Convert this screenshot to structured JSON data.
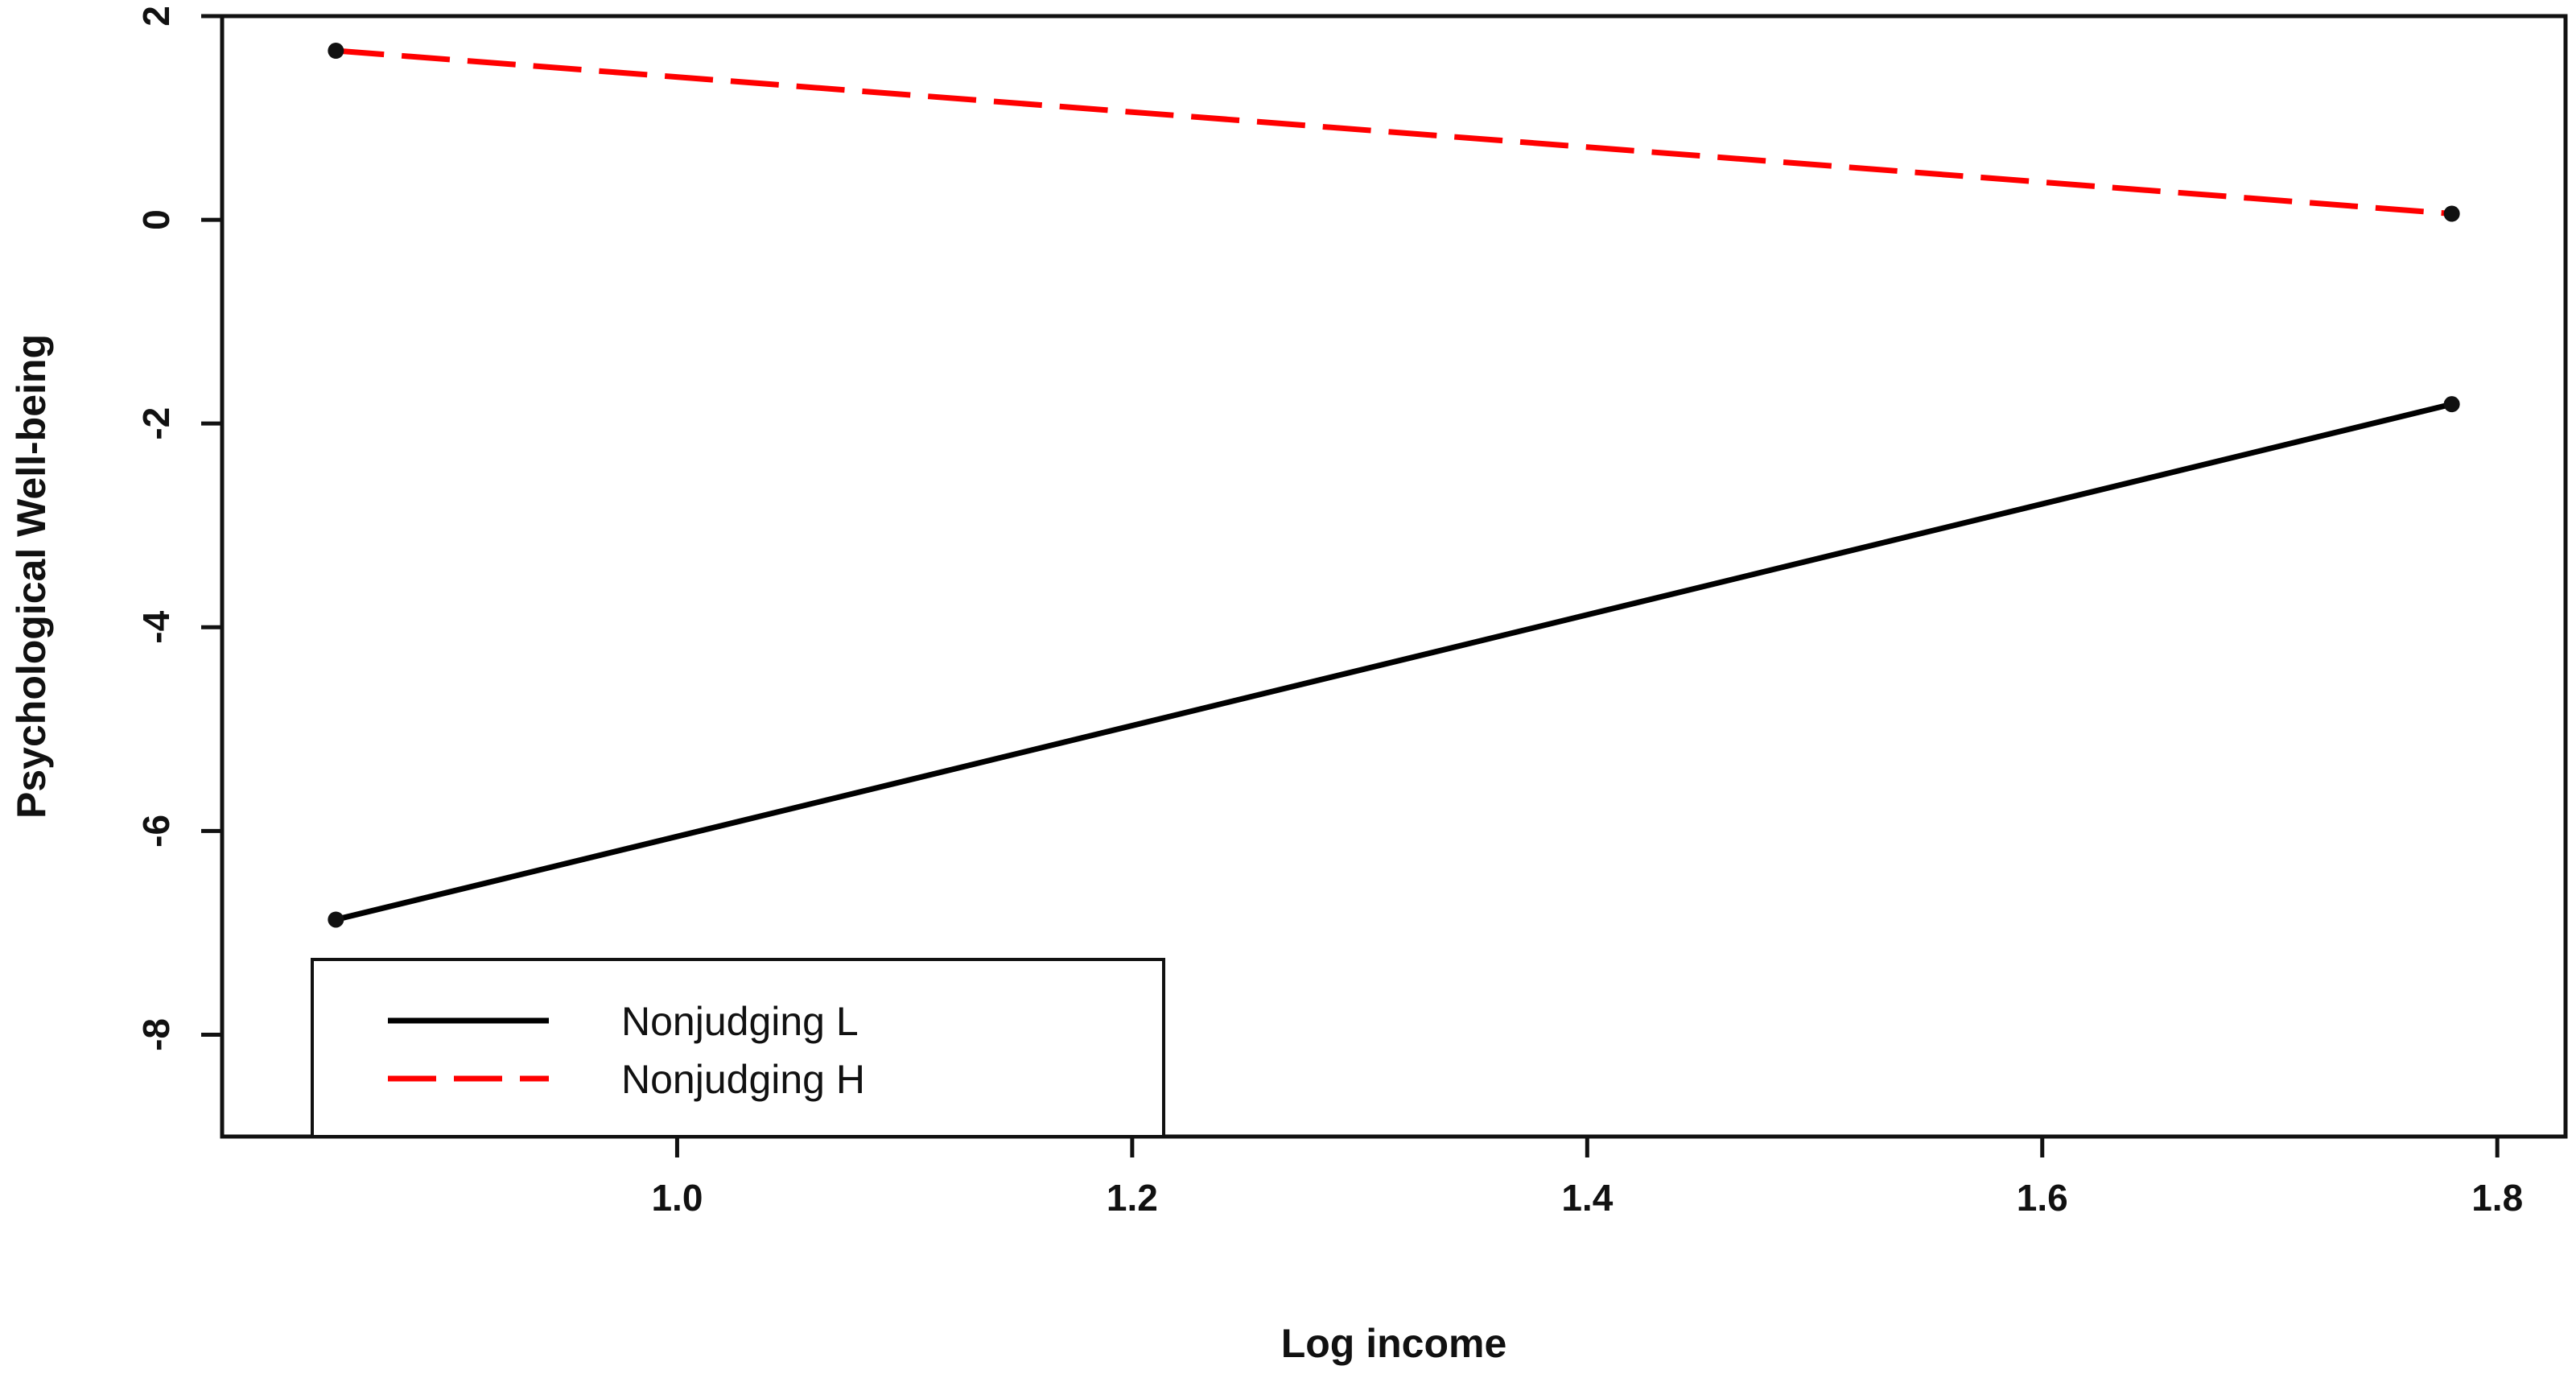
{
  "chart_data": {
    "type": "line",
    "title": "",
    "xlabel": "Log income",
    "ylabel": "Psychological Well-being",
    "xlim": [
      0.8,
      1.83
    ],
    "ylim": [
      -0.9,
      0.2
    ],
    "x_ticks": [
      1.0,
      1.2,
      1.4,
      1.6,
      1.8
    ],
    "x_tick_labels": [
      "1.0",
      "1.2",
      "1.4",
      "1.6",
      "1.8"
    ],
    "y_ticks": [
      0.2,
      0.0,
      -0.2,
      -0.4,
      -0.6,
      -0.8
    ],
    "y_tick_labels": [
      "2",
      "0",
      "-2",
      "-4",
      "-6",
      "-8"
    ],
    "grid": false,
    "legend_position": "bottom-left",
    "series": [
      {
        "name": "Nonjudging L",
        "color": "#000000",
        "line_style": "solid",
        "x": [
          0.85,
          1.78
        ],
        "y": [
          -0.687,
          -0.181
        ]
      },
      {
        "name": "Nonjudging H",
        "color": "#ff0000",
        "line_style": "dashed",
        "x": [
          0.85,
          1.78
        ],
        "y": [
          0.166,
          0.006
        ]
      }
    ]
  }
}
